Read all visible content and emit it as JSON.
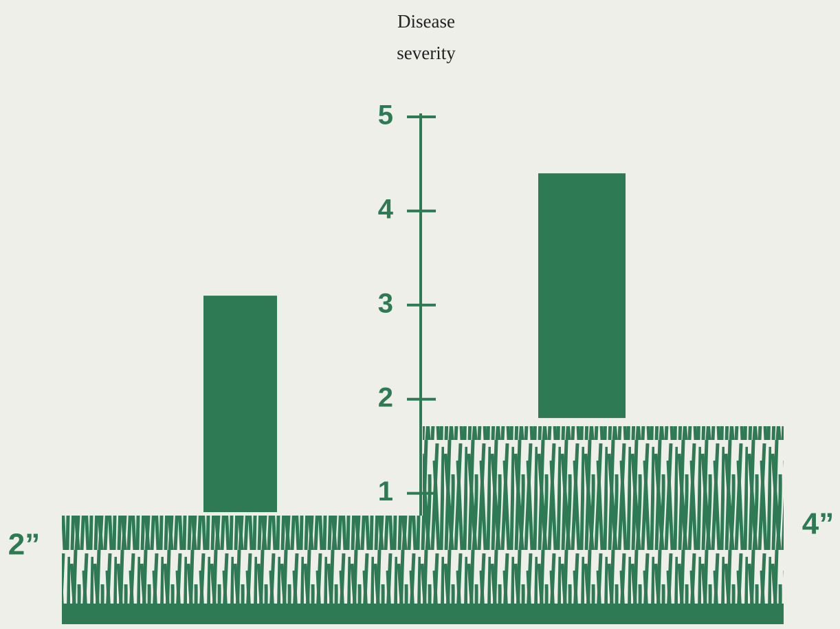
{
  "chart_data": {
    "type": "floating-bar",
    "y_label": "Disease severity",
    "categories": [
      "2”",
      "4”"
    ],
    "low": [
      0.8,
      1.8
    ],
    "high": [
      3.1,
      4.4
    ],
    "color": "#2e7a55",
    "ylim": [
      0.8,
      5
    ],
    "yticks": [
      1,
      2,
      3,
      4,
      5
    ]
  }
}
